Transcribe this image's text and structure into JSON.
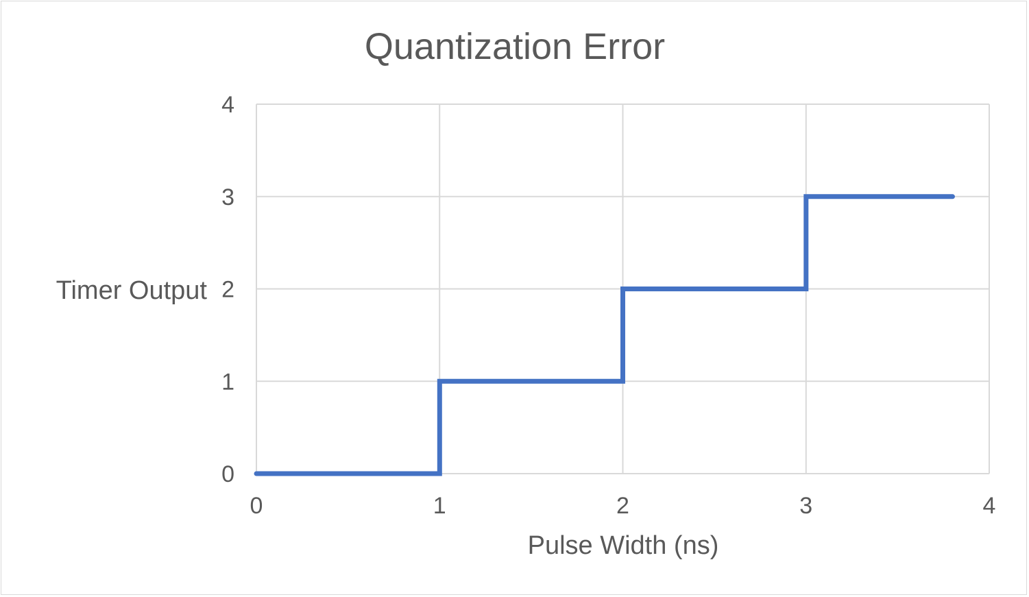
{
  "chart_data": {
    "type": "line",
    "title": "Quantization Error",
    "xlabel": "Pulse Width (ns)",
    "ylabel": "Timer Output",
    "xlim": [
      0,
      4
    ],
    "ylim": [
      0,
      4
    ],
    "x_ticks": [
      "0",
      "1",
      "2",
      "3",
      "4"
    ],
    "y_ticks": [
      "0",
      "1",
      "2",
      "3",
      "4"
    ],
    "grid": true,
    "legend": "none",
    "series": [
      {
        "color": "#4472c4",
        "line_style": "step",
        "points": [
          {
            "x": 0,
            "y": 0
          },
          {
            "x": 1,
            "y": 0
          },
          {
            "x": 1,
            "y": 1
          },
          {
            "x": 2,
            "y": 1
          },
          {
            "x": 2,
            "y": 2
          },
          {
            "x": 3,
            "y": 2
          },
          {
            "x": 3,
            "y": 3
          },
          {
            "x": 3.8,
            "y": 3
          }
        ]
      }
    ]
  }
}
